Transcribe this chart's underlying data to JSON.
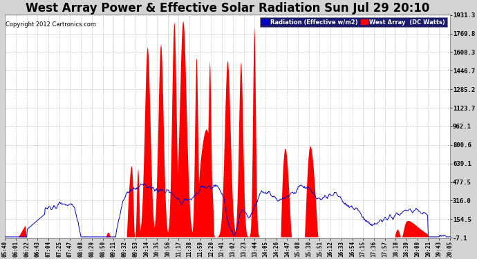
{
  "title": "West Array Power & Effective Solar Radiation Sun Jul 29 20:10",
  "copyright": "Copyright 2012 Cartronics.com",
  "legend_blue": "Radiation (Effective w/m2)",
  "legend_red": "West Array  (DC Watts)",
  "yticks": [
    1931.3,
    1769.8,
    1608.3,
    1446.7,
    1285.2,
    1123.7,
    962.1,
    800.6,
    639.1,
    477.5,
    316.0,
    154.5,
    -7.1
  ],
  "ymin": -7.1,
  "ymax": 1931.3,
  "background_color": "#d4d4d4",
  "plot_bg_color": "#ffffff",
  "title_fontsize": 12,
  "grid_color": "#bbbbbb",
  "red_color": "#ff0000",
  "blue_color": "#0000cc",
  "xtick_labels": [
    "05:40",
    "06:01",
    "06:22",
    "06:43",
    "07:04",
    "07:25",
    "07:47",
    "08:08",
    "08:29",
    "08:50",
    "09:11",
    "09:32",
    "09:53",
    "10:14",
    "10:35",
    "10:56",
    "11:17",
    "11:38",
    "11:59",
    "12:20",
    "12:41",
    "13:02",
    "13:23",
    "13:44",
    "14:05",
    "14:26",
    "14:47",
    "15:08",
    "15:30",
    "15:51",
    "16:12",
    "16:33",
    "16:54",
    "17:15",
    "17:36",
    "17:57",
    "18:18",
    "18:39",
    "19:00",
    "19:21",
    "19:43",
    "20:05"
  ]
}
